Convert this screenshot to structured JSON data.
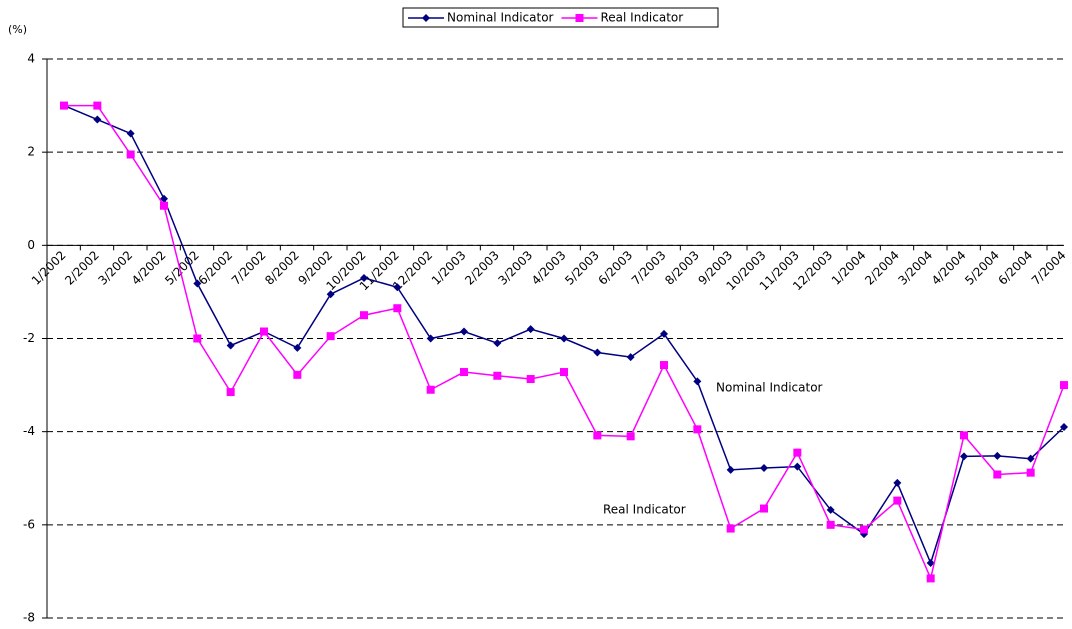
{
  "chart_data": {
    "type": "line",
    "unit_label": "(%)",
    "categories": [
      "1/2002",
      "2/2002",
      "3/2002",
      "4/2002",
      "5/2002",
      "6/2002",
      "7/2002",
      "8/2002",
      "9/2002",
      "10/2002",
      "11/2002",
      "12/2002",
      "1/2003",
      "2/2003",
      "3/2003",
      "4/2003",
      "5/2003",
      "6/2003",
      "7/2003",
      "8/2003",
      "9/2003",
      "10/2003",
      "11/2003",
      "12/2003",
      "1/2004",
      "2/2004",
      "3/2004",
      "4/2004",
      "5/2004",
      "6/2004",
      "7/2004"
    ],
    "series": [
      {
        "name": "Nominal Indicator",
        "color": "#000080",
        "marker": "diamond",
        "values": [
          3.0,
          2.7,
          2.4,
          1.0,
          -0.82,
          -2.15,
          -1.85,
          -2.2,
          -1.05,
          -0.7,
          -0.9,
          -2.0,
          -1.85,
          -2.1,
          -1.8,
          -2.0,
          -2.3,
          -2.4,
          -1.9,
          -2.92,
          -4.82,
          -4.78,
          -4.75,
          -5.68,
          -6.2,
          -5.1,
          -6.82,
          -4.53,
          -4.52,
          -4.58,
          -3.9
        ]
      },
      {
        "name": "Real Indicator",
        "color": "#ff00ff",
        "marker": "square",
        "values": [
          3.0,
          3.0,
          1.95,
          0.85,
          -2.0,
          -3.15,
          -1.85,
          -2.78,
          -1.95,
          -1.5,
          -1.35,
          -3.1,
          -2.72,
          -2.8,
          -2.87,
          -2.72,
          -4.08,
          -4.1,
          -2.57,
          -3.95,
          -6.08,
          -5.65,
          -4.45,
          -6.0,
          -6.1,
          -5.48,
          -7.15,
          -4.08,
          -4.92,
          -4.88,
          -3.0
        ]
      }
    ],
    "annotations": [
      "Nominal Indicator",
      "Real Indicator"
    ],
    "ylim": [
      -8,
      4
    ],
    "yticks": [
      -8,
      -6,
      -4,
      -2,
      0,
      2,
      4
    ],
    "grid": true,
    "legend": "top"
  }
}
